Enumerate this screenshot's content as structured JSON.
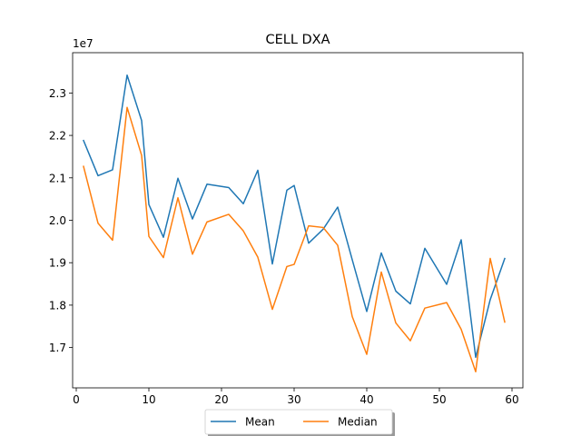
{
  "chart_data": {
    "type": "line",
    "title": "CELL DXA",
    "xlabel": "",
    "ylabel": "",
    "y_offset_label": "1e7",
    "xlim": [
      -0.5,
      61.5
    ],
    "ylim": [
      16050000,
      23950000
    ],
    "x_ticks": [
      0,
      10,
      20,
      30,
      40,
      50,
      60
    ],
    "x_tick_labels": [
      "0",
      "10",
      "20",
      "30",
      "40",
      "50",
      "60"
    ],
    "y_ticks": [
      17000000,
      18000000,
      19000000,
      20000000,
      21000000,
      22000000,
      23000000
    ],
    "y_tick_labels": [
      "1.7",
      "1.8",
      "1.9",
      "2.0",
      "2.1",
      "2.2",
      "2.3"
    ],
    "legend_position": "lower-center-outside",
    "grid": false,
    "x": [
      1,
      3,
      5,
      7,
      9,
      10,
      12,
      14,
      16,
      18,
      21,
      23,
      25,
      27,
      29,
      30,
      32,
      34,
      36,
      38,
      40,
      42,
      44,
      46,
      48,
      51,
      53,
      55,
      57,
      59
    ],
    "series": [
      {
        "name": "Mean",
        "color": "#1f77b4",
        "values": [
          21880000,
          21050000,
          21190000,
          23420000,
          22350000,
          20370000,
          19600000,
          20990000,
          20030000,
          20850000,
          20770000,
          20390000,
          21180000,
          18970000,
          20710000,
          20820000,
          19460000,
          19790000,
          20310000,
          19070000,
          17850000,
          19230000,
          18330000,
          18030000,
          19340000,
          18490000,
          19540000,
          16770000,
          18130000,
          19100000
        ]
      },
      {
        "name": "Median",
        "color": "#ff7f0e",
        "values": [
          21270000,
          19930000,
          19530000,
          22660000,
          21530000,
          19620000,
          19120000,
          20530000,
          19200000,
          19960000,
          20140000,
          19750000,
          19130000,
          17900000,
          18910000,
          18960000,
          19870000,
          19830000,
          19410000,
          17730000,
          16840000,
          18780000,
          17580000,
          17160000,
          17930000,
          18060000,
          17430000,
          16430000,
          19100000,
          17600000
        ]
      }
    ]
  }
}
